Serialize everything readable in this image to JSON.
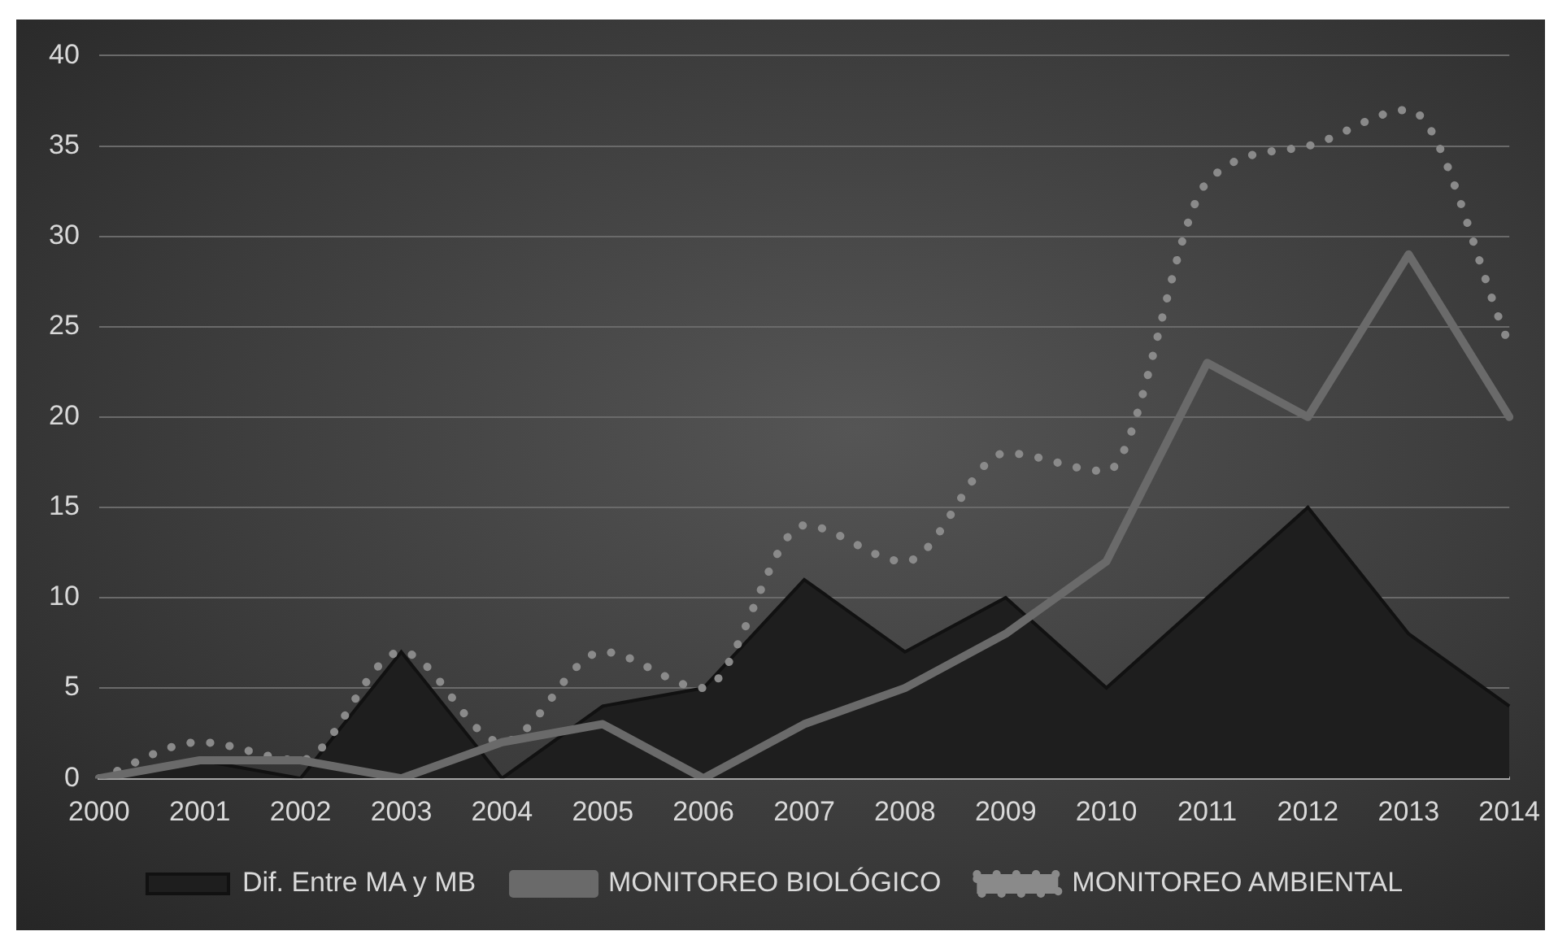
{
  "chart_data": {
    "type": "line",
    "categories": [
      "2000",
      "2001",
      "2002",
      "2003",
      "2004",
      "2005",
      "2006",
      "2007",
      "2008",
      "2009",
      "2010",
      "2011",
      "2012",
      "2013",
      "2014"
    ],
    "series": [
      {
        "name": "Dif. Entre MA y MB",
        "type": "area",
        "color": "#1e1e1e",
        "values": [
          0,
          1,
          0,
          7,
          0,
          4,
          5,
          11,
          7,
          10,
          5,
          10,
          15,
          8,
          4
        ]
      },
      {
        "name": "MONITOREO BIOLÓGICO",
        "color": "#6a6a6a",
        "line_style": "solid",
        "values": [
          0,
          1,
          1,
          0,
          2,
          3,
          0,
          3,
          5,
          8,
          12,
          23,
          20,
          29,
          20
        ]
      },
      {
        "name": "MONITOREO AMBIENTAL",
        "color": "#8a8a8a",
        "line_style": "dotted",
        "values": [
          0,
          2,
          1,
          7,
          2,
          7,
          5,
          14,
          12,
          18,
          17,
          33,
          35,
          37,
          24
        ]
      }
    ],
    "ylim": [
      0,
      40
    ],
    "yticks": [
      0,
      5,
      10,
      15,
      20,
      25,
      30,
      35,
      40
    ],
    "grid": "y",
    "legend": "bottom",
    "marker": "none"
  }
}
